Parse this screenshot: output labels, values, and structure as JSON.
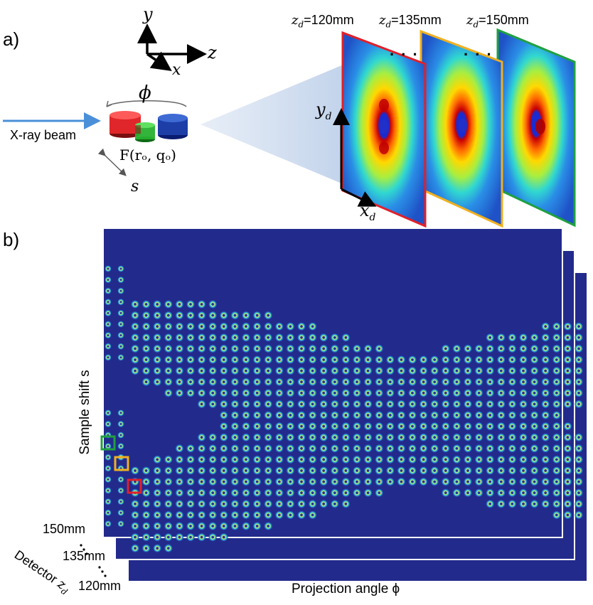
{
  "panel_a": {
    "label": "a)",
    "axes": {
      "y": "y",
      "z": "z",
      "x": "x"
    },
    "rotation": "ϕ",
    "beam_label": "X-ray beam",
    "shift": "s",
    "sample_label": "F(rₒ, qₒ)",
    "detector_axes": {
      "y": "y",
      "y_sub": "d",
      "x": "x",
      "x_sub": "d"
    },
    "distances": [
      {
        "var": "z",
        "sub": "d",
        "value": "=120mm",
        "frame_color": "#e0202a"
      },
      {
        "var": "z",
        "sub": "d",
        "value": "=135mm",
        "frame_color": "#f0b020"
      },
      {
        "var": "z",
        "sub": "d",
        "value": "=150mm",
        "frame_color": "#20a040"
      }
    ],
    "ellipsis": ". . ."
  },
  "panel_b": {
    "label": "b)",
    "y_axis_label": "Sample shift s",
    "x_axis_label": "Projection angle ϕ",
    "detector_label": "Detector",
    "detector_var": "z",
    "detector_sub": "d",
    "distances": [
      "150mm",
      "135mm",
      "120mm"
    ],
    "highlight_colors": [
      "#20a040",
      "#f0b020",
      "#e0202a"
    ],
    "background_color": "#222a8c"
  }
}
